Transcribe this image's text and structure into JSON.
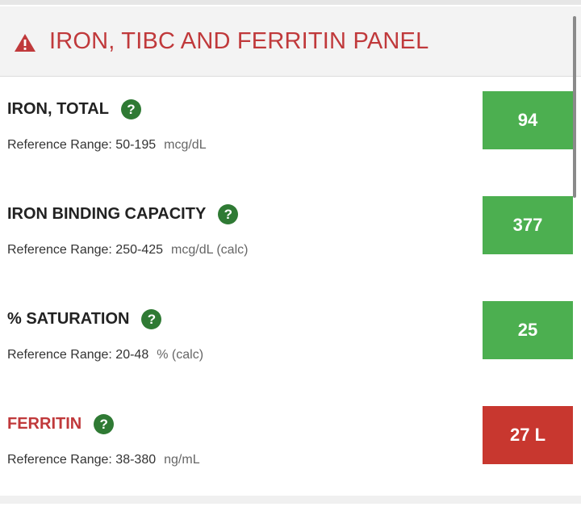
{
  "panel": {
    "title": "IRON, TIBC AND FERRITIN PANEL",
    "alert_color": "#c0393b"
  },
  "results": [
    {
      "name": "IRON, TOTAL",
      "ref_label": "Reference Range: 50-195",
      "unit": "mcg/dL",
      "value": "94",
      "status": "normal"
    },
    {
      "name": "IRON BINDING CAPACITY",
      "ref_label": "Reference Range: 250-425",
      "unit": "mcg/dL (calc)",
      "value": "377",
      "status": "normal"
    },
    {
      "name": "% SATURATION",
      "ref_label": "Reference Range: 20-48",
      "unit": "% (calc)",
      "value": "25",
      "status": "normal"
    },
    {
      "name": "FERRITIN",
      "ref_label": "Reference Range: 38-380",
      "unit": "ng/mL",
      "value": "27 L",
      "status": "low"
    }
  ],
  "help_glyph": "?",
  "colors": {
    "normal": "#4caf50",
    "low": "#c8372f",
    "help": "#2f7a34"
  }
}
